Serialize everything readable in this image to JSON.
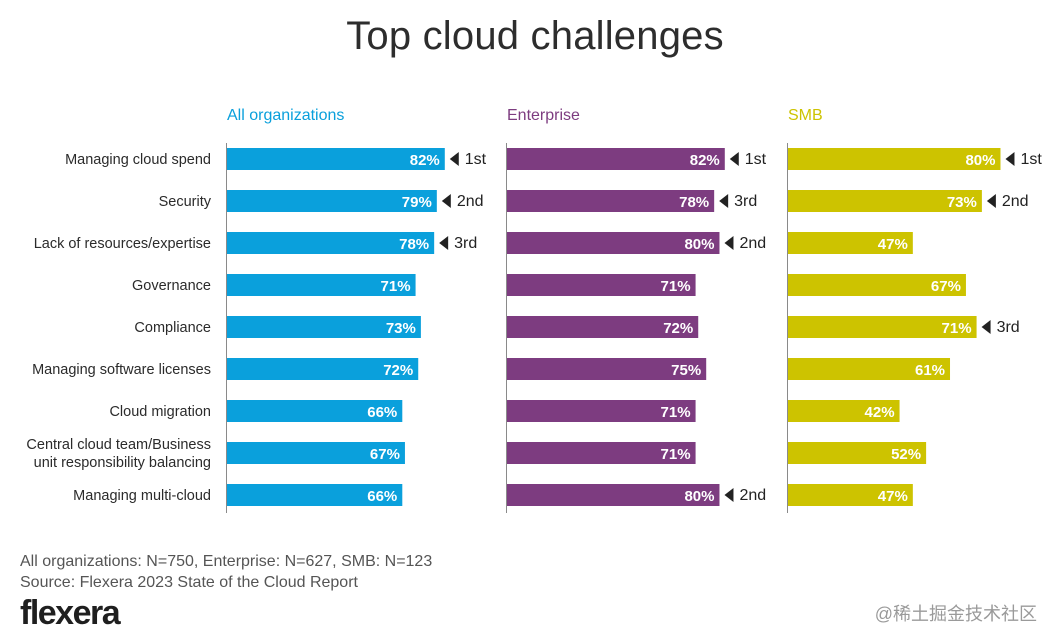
{
  "title": "Top cloud challenges",
  "footnotes": {
    "sample": "All organizations: N=750, Enterprise: N=627, SMB: N=123",
    "source": "Source: Flexera 2023 State of the Cloud Report"
  },
  "logo": "flexera",
  "watermark": "@稀土掘金技术社区",
  "chart_data": {
    "type": "bar",
    "orientation": "horizontal",
    "title": "Top cloud challenges",
    "unit": "%",
    "categories": [
      "Managing cloud spend",
      "Security",
      "Lack of resources/expertise",
      "Governance",
      "Compliance",
      "Managing software licenses",
      "Cloud migration",
      "Central cloud team/Business unit responsibility balancing",
      "Managing multi-cloud"
    ],
    "category_lines": [
      [
        "Managing cloud spend"
      ],
      [
        "Security"
      ],
      [
        "Lack of resources/expertise"
      ],
      [
        "Governance"
      ],
      [
        "Compliance"
      ],
      [
        "Managing software licenses"
      ],
      [
        "Cloud migration"
      ],
      [
        "Central cloud team/Business",
        "unit responsibility balancing"
      ],
      [
        "Managing multi-cloud"
      ]
    ],
    "series": [
      {
        "name": "All organizations",
        "color": "#0aa0dc",
        "values": [
          82,
          79,
          78,
          71,
          73,
          72,
          66,
          67,
          66
        ],
        "ranks": [
          "1st",
          "2nd",
          "3rd",
          null,
          null,
          null,
          null,
          null,
          null
        ]
      },
      {
        "name": "Enterprise",
        "color": "#7d3c80",
        "values": [
          82,
          78,
          80,
          71,
          72,
          75,
          71,
          71,
          80
        ],
        "ranks": [
          "1st",
          "3rd",
          "2nd",
          null,
          null,
          null,
          null,
          null,
          "2nd"
        ]
      },
      {
        "name": "SMB",
        "color": "#cdc300",
        "values": [
          80,
          73,
          47,
          67,
          71,
          61,
          42,
          52,
          47
        ],
        "ranks": [
          "1st",
          "2nd",
          null,
          null,
          "3rd",
          null,
          null,
          null,
          null
        ]
      }
    ]
  }
}
